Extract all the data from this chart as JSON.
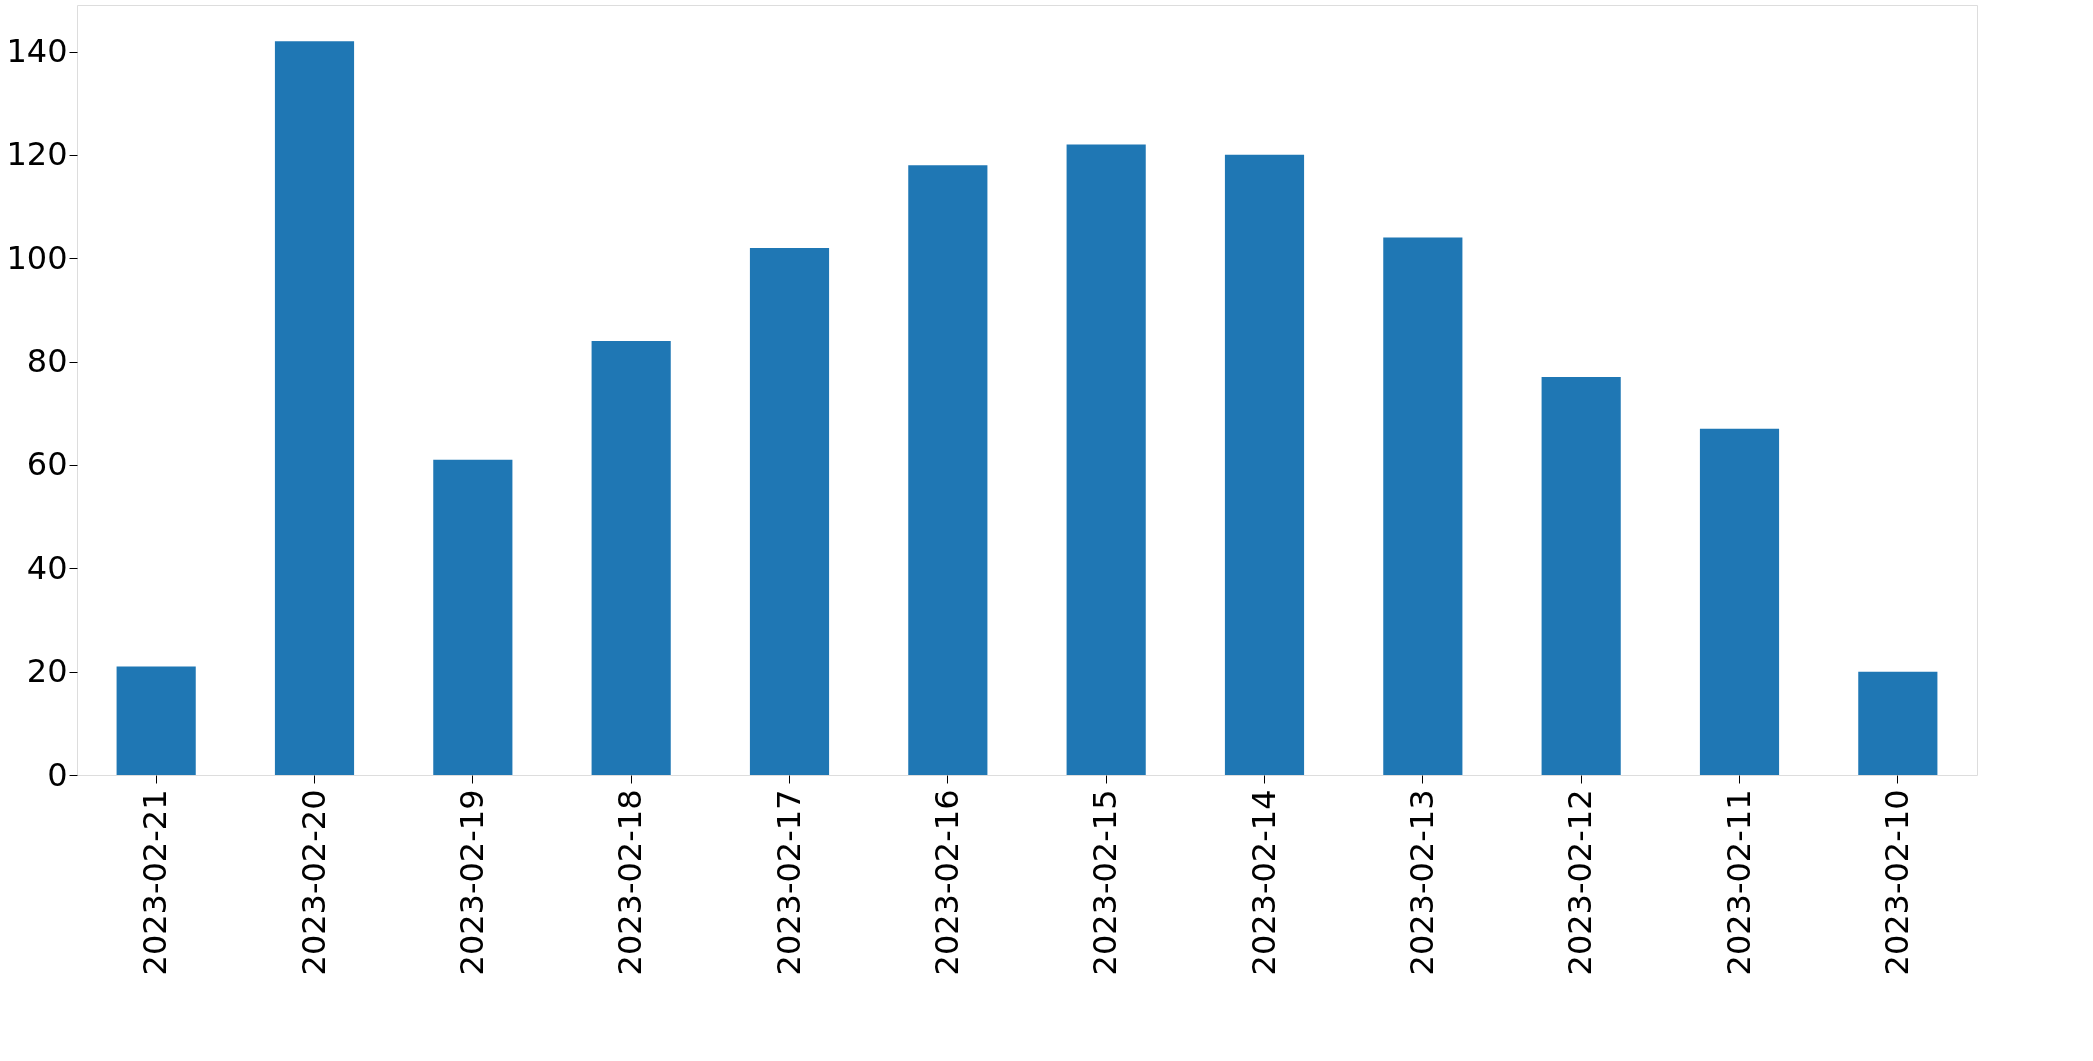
{
  "chart_data": {
    "type": "bar",
    "categories": [
      "2023-02-21",
      "2023-02-20",
      "2023-02-19",
      "2023-02-18",
      "2023-02-17",
      "2023-02-16",
      "2023-02-15",
      "2023-02-14",
      "2023-02-13",
      "2023-02-12",
      "2023-02-11",
      "2023-02-10"
    ],
    "values": [
      21,
      142,
      61,
      84,
      102,
      118,
      122,
      120,
      104,
      77,
      67,
      20
    ],
    "color": "#1f77b4",
    "ylim": [
      0,
      149
    ],
    "yticks": [
      0,
      20,
      40,
      60,
      80,
      100,
      120,
      140
    ],
    "grid": false
  }
}
